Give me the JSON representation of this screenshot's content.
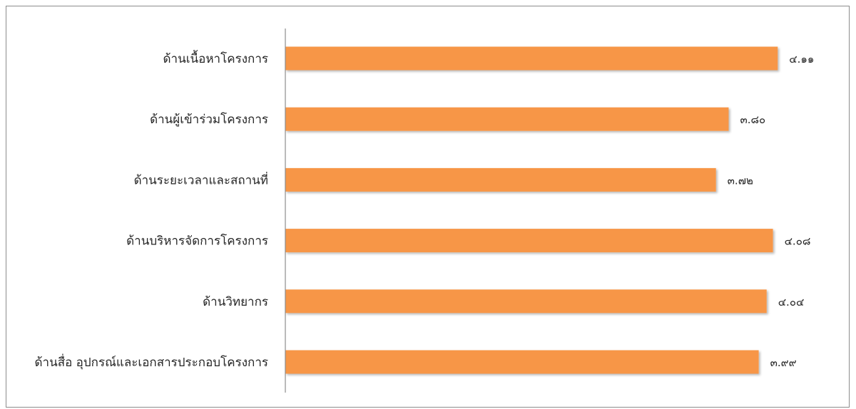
{
  "chart_data": {
    "type": "bar",
    "orientation": "horizontal",
    "title": "",
    "xlabel": "",
    "ylabel": "",
    "xlim": [
      1.0,
      4.19
    ],
    "grid": false,
    "legend": "none",
    "bar_color": "#F79646",
    "categories": [
      "ด้านเนื้อหาโครงการ",
      "ด้านผู้เข้าร่วมโครงการ",
      "ด้านระยะเวลาและสถานที่",
      "ด้านบริหารจัดการโครงการ",
      "ด้านวิทยากร",
      "ด้านสื่อ อุปกรณ์และเอกสารประกอบโครงการ"
    ],
    "values": [
      4.11,
      3.8,
      3.72,
      4.08,
      4.04,
      3.99
    ],
    "value_labels": [
      "๔.๑๑",
      "๓.๘๐",
      "๓.๗๒",
      "๔.๐๘",
      "๔.๐๔",
      "๓.๙๙"
    ]
  }
}
